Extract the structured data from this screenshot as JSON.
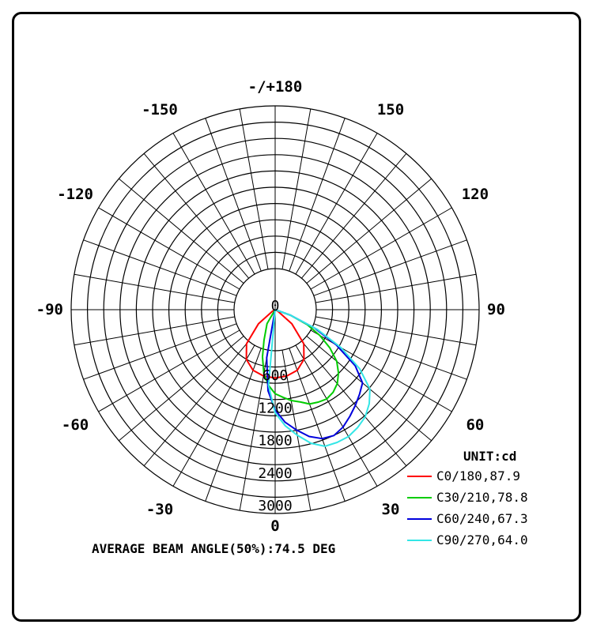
{
  "chart_data": {
    "type": "polar",
    "title": "",
    "angle_labels": [
      {
        "text": "-/+180",
        "deg": 180
      },
      {
        "text": "150",
        "deg": 150
      },
      {
        "text": "-150",
        "deg": -150
      },
      {
        "text": "120",
        "deg": 120
      },
      {
        "text": "-120",
        "deg": -120
      },
      {
        "text": "90",
        "deg": 90
      },
      {
        "text": "-90",
        "deg": -90
      },
      {
        "text": "60",
        "deg": 60
      },
      {
        "text": "-60",
        "deg": -60
      },
      {
        "text": "30",
        "deg": 30
      },
      {
        "text": "-30",
        "deg": -30
      },
      {
        "text": "0",
        "deg": 0
      }
    ],
    "radial_labels": [
      "0",
      "600",
      "1200",
      "1800",
      "2400",
      "3000"
    ],
    "radial_ticks": [
      0,
      600,
      1200,
      1800,
      2400,
      3000
    ],
    "rmax": 3000,
    "unit_label": "UNIT:cd",
    "legend_position": "bottom-right",
    "series": [
      {
        "name": "C0/180,87.9",
        "color": "#ff0000",
        "angles": [
          -60,
          -50,
          -40,
          -30,
          -20,
          -10,
          0,
          10,
          20,
          30,
          40,
          50,
          60
        ],
        "values": [
          60,
          400,
          820,
          1060,
          1190,
          1240,
          1260,
          1240,
          1190,
          1060,
          820,
          400,
          60
        ]
      },
      {
        "name": "C30/210,78.8",
        "color": "#00cc00",
        "angles": [
          -30,
          -20,
          -15,
          -10,
          -5,
          0,
          5,
          10,
          15,
          20,
          25,
          30,
          35,
          40,
          45,
          50,
          55,
          60,
          65,
          70
        ],
        "values": [
          300,
          600,
          900,
          1200,
          1400,
          1550,
          1620,
          1700,
          1760,
          1850,
          1880,
          1900,
          1860,
          1780,
          1650,
          1480,
          1230,
          950,
          650,
          300
        ]
      },
      {
        "name": "C60/240,67.3",
        "color": "#0000dd",
        "angles": [
          -10,
          -5,
          0,
          5,
          10,
          15,
          20,
          25,
          30,
          35,
          40,
          45,
          50,
          55,
          60,
          65,
          70
        ],
        "values": [
          900,
          1500,
          1850,
          2080,
          2250,
          2420,
          2530,
          2560,
          2500,
          2400,
          2300,
          2200,
          2100,
          1800,
          1300,
          800,
          300
        ]
      },
      {
        "name": "C90/270,64.0",
        "color": "#33e6e6",
        "angles": [
          -5,
          0,
          5,
          10,
          15,
          20,
          25,
          30,
          35,
          40,
          45,
          50,
          55,
          60,
          65,
          70
        ],
        "values": [
          1400,
          1900,
          2150,
          2350,
          2550,
          2680,
          2700,
          2700,
          2650,
          2580,
          2450,
          2280,
          1900,
          1400,
          850,
          300
        ]
      }
    ]
  },
  "beam_angle_text": "AVERAGE BEAM ANGLE(50%):74.5 DEG"
}
